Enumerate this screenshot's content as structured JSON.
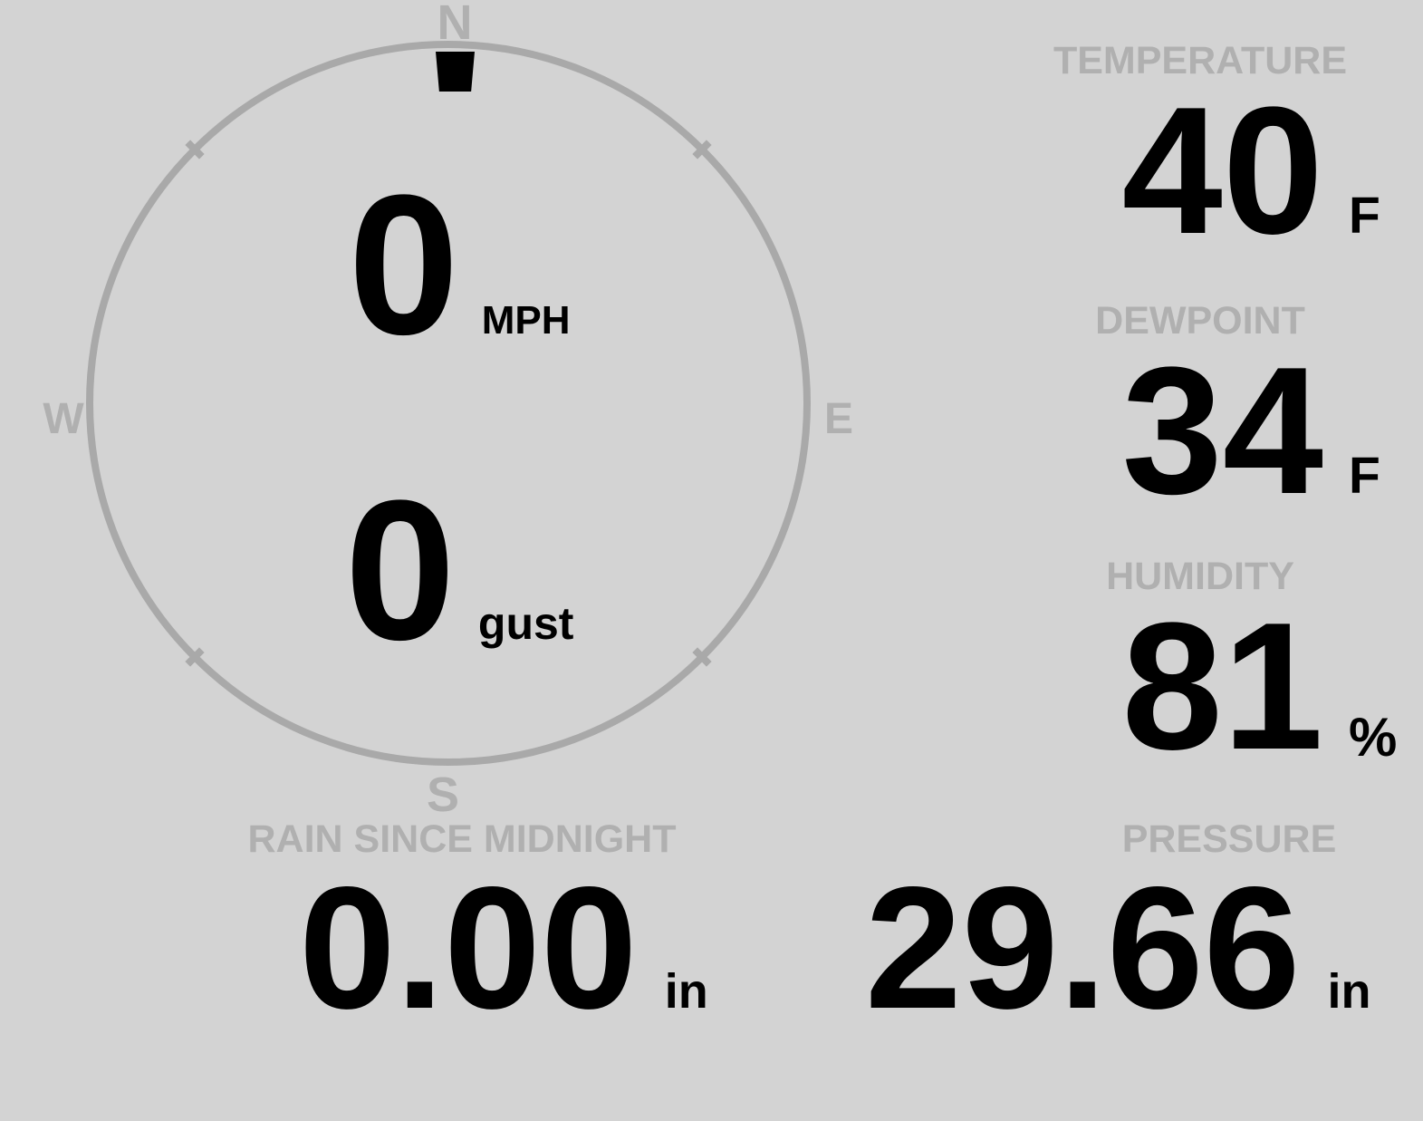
{
  "colors": {
    "background": "#d3d3d3",
    "compass_ring": "#a9a9a9",
    "label_gray": "#b0b0b0",
    "value_black": "#000000",
    "marker_black": "#000000"
  },
  "compass": {
    "directions": {
      "north": "N",
      "east": "E",
      "south": "S",
      "west": "W"
    },
    "wind_direction": "N",
    "wind_speed": {
      "value": "0",
      "unit": "MPH"
    },
    "wind_gust": {
      "value": "0",
      "unit": "gust"
    }
  },
  "stats": {
    "temperature": {
      "label": "TEMPERATURE",
      "value": "40",
      "unit": "F"
    },
    "dewpoint": {
      "label": "DEWPOINT",
      "value": "34",
      "unit": "F"
    },
    "humidity": {
      "label": "HUMIDITY",
      "value": "81",
      "unit": "%"
    },
    "rain": {
      "label": "RAIN SINCE MIDNIGHT",
      "value": "0.00",
      "unit": "in"
    },
    "pressure": {
      "label": "PRESSURE",
      "value": "29.66",
      "unit": "in"
    }
  }
}
